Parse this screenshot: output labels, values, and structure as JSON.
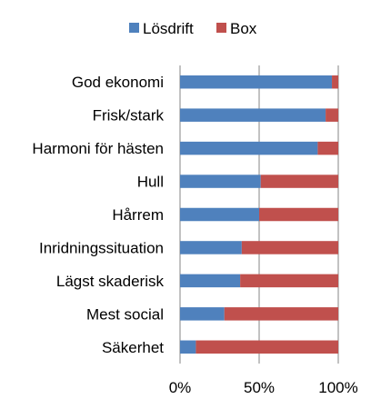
{
  "chart_data": {
    "type": "bar",
    "orientation": "horizontal",
    "stacked": true,
    "percent_stacked": true,
    "categories": [
      "God ekonomi",
      "Frisk/stark",
      "Harmoni för hästen",
      "Hull",
      "Hårrem",
      "Inridningssituation",
      "Lägst skaderisk",
      "Mest social",
      "Säkerhet"
    ],
    "series": [
      {
        "name": "Lösdrift",
        "color": "#4F81BD",
        "values": [
          96,
          92,
          87,
          51,
          50,
          39,
          38,
          28,
          10
        ]
      },
      {
        "name": "Box",
        "color": "#C0504D",
        "values": [
          4,
          8,
          13,
          49,
          50,
          61,
          62,
          72,
          90
        ]
      }
    ],
    "xlim": [
      0,
      100
    ],
    "xticks": [
      "0%",
      "50%",
      "100%"
    ],
    "legend_position": "top",
    "grid": "vertical"
  }
}
